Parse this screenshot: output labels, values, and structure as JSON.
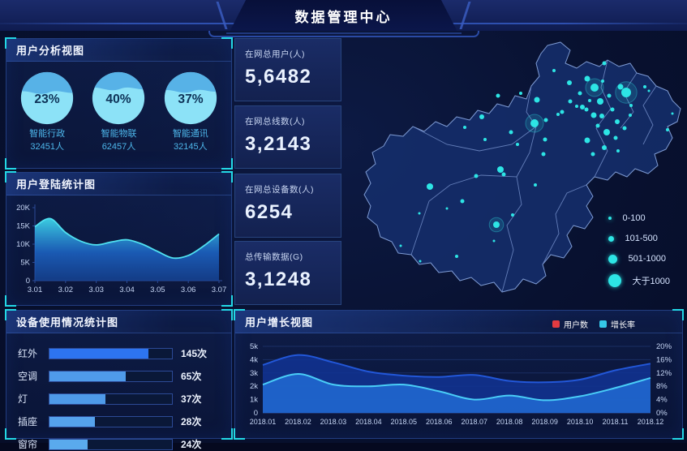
{
  "header": {
    "title": "数据管理中心"
  },
  "panels": {
    "user_analysis": {
      "title": "用户分析视图"
    },
    "login_stats": {
      "title": "用户登陆统计图"
    },
    "device_stats": {
      "title": "设备使用情况统计图"
    },
    "user_growth": {
      "title": "用户增长视图"
    }
  },
  "stats": {
    "cards": [
      {
        "label": "在网总用户(人)",
        "value": "5,6482"
      },
      {
        "label": "在网总线数(人)",
        "value": "3,2143"
      },
      {
        "label": "在网总设备数(人)",
        "value": "6254"
      },
      {
        "label": "总传输数据(G)",
        "value": "3,1248"
      }
    ]
  },
  "map": {
    "dot_color": "#2de5e5",
    "legend": [
      {
        "label": "0-100",
        "size": 4
      },
      {
        "label": "101-500",
        "size": 7
      },
      {
        "label": "501-1000",
        "size": 11
      },
      {
        "label": "大于1000",
        "size": 16
      }
    ],
    "dots": [
      [
        258,
        47,
        2
      ],
      [
        277,
        62,
        3
      ],
      [
        299,
        57,
        3.5
      ],
      [
        320,
        38,
        2.5
      ],
      [
        340,
        67,
        3.5
      ],
      [
        370,
        67,
        2
      ],
      [
        375,
        72,
        1.5
      ],
      [
        353,
        90,
        2
      ],
      [
        308,
        68,
        5,
        1
      ],
      [
        347,
        74,
        6,
        1
      ],
      [
        315,
        85,
        4
      ],
      [
        234,
        112,
        5,
        1
      ],
      [
        293,
        92,
        3
      ],
      [
        307,
        102,
        3.5
      ],
      [
        317,
        103,
        3
      ],
      [
        323,
        123,
        4
      ],
      [
        278,
        85,
        2.5
      ],
      [
        268,
        98,
        2.5
      ],
      [
        286,
        91,
        2
      ],
      [
        298,
        95,
        2.5
      ],
      [
        263,
        101,
        2
      ],
      [
        299,
        133,
        3.5
      ],
      [
        326,
        78,
        2.5
      ],
      [
        318,
        60,
        2
      ],
      [
        290,
        75,
        2.5
      ],
      [
        302,
        84,
        2
      ],
      [
        330,
        95,
        2.5
      ],
      [
        336,
        110,
        3
      ],
      [
        352,
        102,
        2
      ],
      [
        345,
        118,
        2.5
      ],
      [
        312,
        115,
        2.5
      ],
      [
        334,
        130,
        2.5
      ],
      [
        320,
        142,
        3
      ],
      [
        306,
        150,
        2.5
      ],
      [
        337,
        146,
        2
      ],
      [
        398,
        120,
        2
      ],
      [
        404,
        100,
        1.5
      ],
      [
        247,
        132,
        2.5
      ],
      [
        245,
        150,
        2.5
      ],
      [
        213,
        138,
        2
      ],
      [
        205,
        123,
        2.5
      ],
      [
        173,
        132,
        2
      ],
      [
        148,
        117,
        2
      ],
      [
        169,
        104,
        3
      ],
      [
        189,
        78,
        2.5
      ],
      [
        217,
        75,
        2
      ],
      [
        237,
        83,
        3.5
      ],
      [
        248,
        108,
        2.5
      ],
      [
        105,
        190,
        4
      ],
      [
        162,
        177,
        2.5
      ],
      [
        192,
        169,
        4
      ],
      [
        196,
        175,
        2.5
      ],
      [
        235,
        188,
        2
      ],
      [
        145,
        208,
        2.5
      ],
      [
        126,
        217,
        1.5
      ],
      [
        92,
        223,
        1.5
      ],
      [
        207,
        225,
        2
      ],
      [
        187,
        237,
        4,
        1
      ],
      [
        184,
        257,
        1.5
      ],
      [
        69,
        263,
        1.5
      ],
      [
        93,
        282,
        1.5
      ],
      [
        138,
        276,
        2
      ]
    ]
  },
  "chart_data": [
    {
      "id": "liquid",
      "type": "liquid-gauge",
      "title": "用户分析视图",
      "items": [
        {
          "percent": 23,
          "percent_label": "23%",
          "label": "智能行政",
          "count_label": "32451人",
          "level": 0.58
        },
        {
          "percent": 40,
          "percent_label": "40%",
          "label": "智能物联",
          "count_label": "62457人",
          "level": 0.64
        },
        {
          "percent": 37,
          "percent_label": "37%",
          "label": "智能通讯",
          "count_label": "32145人",
          "level": 0.6
        }
      ],
      "ball_color": "#8ce2f7",
      "wave_color": "#57b2e7",
      "text_color": "#0e3358"
    },
    {
      "id": "login",
      "type": "area",
      "title": "用户登陆统计图",
      "x_ticks": [
        "3.01",
        "3.02",
        "3.03",
        "3.04",
        "3.05",
        "3.06",
        "3.07"
      ],
      "y_ticks": [
        "0",
        "5K",
        "10K",
        "15K",
        "20K"
      ],
      "ylim": [
        0,
        20
      ],
      "unit": "K",
      "values": [
        14.8,
        17.0,
        13.2,
        10.8,
        9.8,
        10.6,
        11.2,
        10.0,
        8.0,
        6.2,
        6.9,
        9.5,
        12.8
      ],
      "line_color": "#4fe0f0",
      "fill_top": "#3ed6e9",
      "fill_mid": "#1e6ad0",
      "fill_bottom": "#16489e"
    },
    {
      "id": "device",
      "type": "bar",
      "title": "设备使用情况统计图",
      "categories": [
        "红外",
        "空调",
        "灯",
        "插座",
        "窗帘"
      ],
      "values": [
        145,
        65,
        37,
        28,
        24
      ],
      "value_labels": [
        "145次",
        "65次",
        "37次",
        "28次",
        "24次"
      ],
      "bar_fractions": [
        0.81,
        0.62,
        0.46,
        0.37,
        0.31
      ],
      "bar_colors": [
        "#2d74f0",
        "#4f9bea",
        "#4e9ae9",
        "#55a2ec",
        "#5aaaed"
      ]
    },
    {
      "id": "growth",
      "type": "area-multi",
      "title": "用户增长视图",
      "categories": [
        "2018.01",
        "2018.02",
        "2018.03",
        "2018.04",
        "2018.05",
        "2018.06",
        "2018.07",
        "2018.08",
        "2018.09",
        "2018.10",
        "2018.11",
        "2018.12"
      ],
      "series": [
        {
          "name": "用户数",
          "axis": "left",
          "line_color": "#2257d8",
          "fill_color": "rgba(18,52,148,0.85)",
          "values": [
            3.6,
            4.35,
            3.8,
            3.1,
            2.8,
            2.7,
            2.85,
            2.4,
            2.3,
            2.5,
            3.2,
            3.7
          ]
        },
        {
          "name": "增长率",
          "axis": "right",
          "line_color": "#49cdf7",
          "fill_color": "rgba(31,102,205,0.92)",
          "values": [
            8.5,
            11.7,
            8.5,
            8.0,
            8.5,
            6.5,
            4.0,
            5.2,
            3.8,
            5.0,
            7.5,
            10.5
          ]
        }
      ],
      "left_ticks": [
        "0",
        "1k",
        "2k",
        "3k",
        "4k",
        "5k"
      ],
      "left_lim": [
        0,
        5
      ],
      "right_ticks": [
        "0%",
        "4%",
        "8%",
        "12%",
        "16%",
        "20%"
      ],
      "right_lim": [
        0,
        20
      ],
      "legend": [
        {
          "label": "用户数",
          "color": "#e23b41"
        },
        {
          "label": "增长率",
          "color": "#35c8e8"
        }
      ],
      "grid": true,
      "legend_position": "top-right"
    }
  ]
}
